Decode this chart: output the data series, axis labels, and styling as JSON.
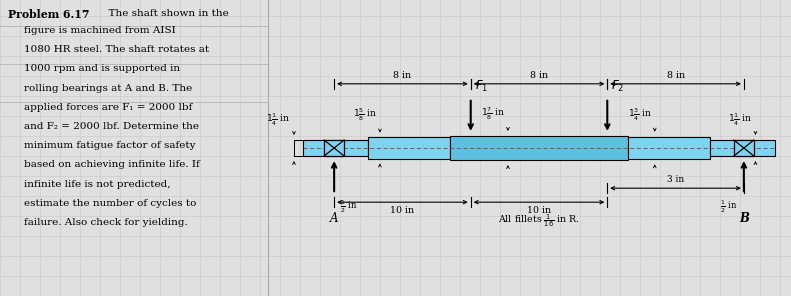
{
  "bg_color": "#e0e0e0",
  "shaft_light": "#7DD4EE",
  "shaft_mid": "#5EC0E0",
  "shaft_dark": "#3AA0C0",
  "grid_color": "#c8c8c8",
  "black": "#000000",
  "text_lines": [
    "figure is machined from AISI",
    "1080 HR steel. The shaft rotates at",
    "1000 rpm and is supported in",
    "rolling bearings at A and B. The",
    "applied forces are F₁ = 2000 lbf",
    "and F₂ = 2000 lbf. Determine the",
    "minimum fatigue factor of safety",
    "based on achieving infinite life. If",
    "infinite life is not predicted,",
    "estimate the number of cycles to",
    "failure. Also check for yielding."
  ]
}
